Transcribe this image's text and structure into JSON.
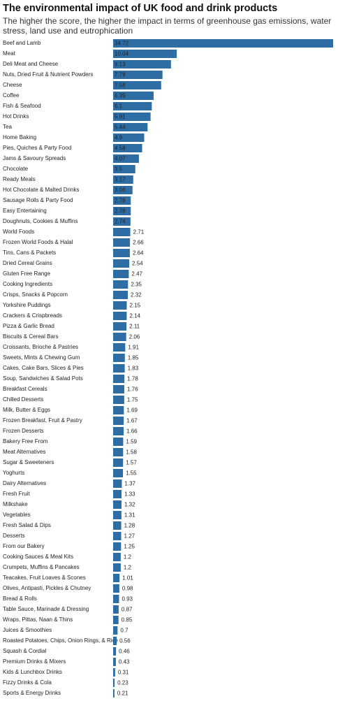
{
  "chart_data": {
    "type": "bar",
    "orientation": "horizontal",
    "title": "The environmental impact of UK food and drink products",
    "subtitle": "The higher the score, the higher the impact in terms of greenhouse gas emissions, water stress, land use and eutrophication",
    "color": "#2e6da4",
    "categories": [
      "Beef and Lamb",
      "Meat",
      "Deli Meat and Cheese",
      "Nuts, Dried Fruit & Nutrient Powders",
      "Cheese",
      "Coffee",
      "Fish & Seafood",
      "Hot Drinks",
      "Tea",
      "Home Baking",
      "Pies, Quiches & Party Food",
      "Jams & Savoury Spreads",
      "Chocolate",
      "Ready Meals",
      "Hot Chocolate & Malted Drinks",
      "Sausage Rolls & Party Food",
      "Easy Entertaining",
      "Doughnuts, Cookies & Muffins",
      "World Foods",
      "Frozen World Foods & Halal",
      "Tins, Cans & Packets",
      "Dried Cereal Grains",
      "Gluten Free Range",
      "Cooking Ingredients",
      "Crisps, Snacks & Popcorn",
      "Yorkshire Puddings",
      "Crackers & Crispbreads",
      "Pizza & Garlic Bread",
      "Biscuits & Cereal Bars",
      "Croissants, Brioche & Pastries",
      "Sweets, Mints & Chewing Gum",
      "Cakes, Cake Bars, Slices & Pies",
      "Soup, Sandwiches & Salad Pots",
      "Breakfast Cereals",
      "Chilled Desserts",
      "Milk, Butter & Eggs",
      "Frozen Breakfast, Fruit & Pastry",
      "Frozen Desserts",
      "Bakery Free From",
      "Meat Alternatives",
      "Sugar & Sweeteners",
      "Yoghurts",
      "Dairy Alternatives",
      "Fresh Fruit",
      "Milkshake",
      "Vegetables",
      "Fresh Salad & Dips",
      "Desserts",
      "From our Bakery",
      "Cooking Sauces & Meal Kits",
      "Crumpets, Muffins & Pancakes",
      "Teacakes, Fruit Loaves & Scones",
      "Olives, Antipasti, Pickles & Chutney",
      "Bread & Rolls",
      "Table Sauce, Marinade & Dressing",
      "Wraps, Pittas, Naan & Thins",
      "Juices & Smoothies",
      "Roasted Potatoes, Chips, Onion Rings, & Rice",
      "Squash & Cordial",
      "Premium Drinks & Mixers",
      "Kids & Lunchbox Drinks",
      "Fizzy Drinks & Cola",
      "Sports & Energy Drinks"
    ],
    "values": [
      34.72,
      10.04,
      9.13,
      7.79,
      7.58,
      6.39,
      6.1,
      5.91,
      5.44,
      4.9,
      4.58,
      4.07,
      3.5,
      3.17,
      3.06,
      2.78,
      2.78,
      2.74,
      2.71,
      2.66,
      2.64,
      2.54,
      2.47,
      2.35,
      2.32,
      2.15,
      2.14,
      2.11,
      2.06,
      1.91,
      1.85,
      1.83,
      1.78,
      1.76,
      1.75,
      1.69,
      1.67,
      1.66,
      1.59,
      1.58,
      1.57,
      1.55,
      1.37,
      1.33,
      1.32,
      1.31,
      1.28,
      1.27,
      1.25,
      1.2,
      1.2,
      1.01,
      0.98,
      0.93,
      0.87,
      0.85,
      0.7,
      0.56,
      0.46,
      0.43,
      0.31,
      0.23,
      0.21
    ]
  }
}
